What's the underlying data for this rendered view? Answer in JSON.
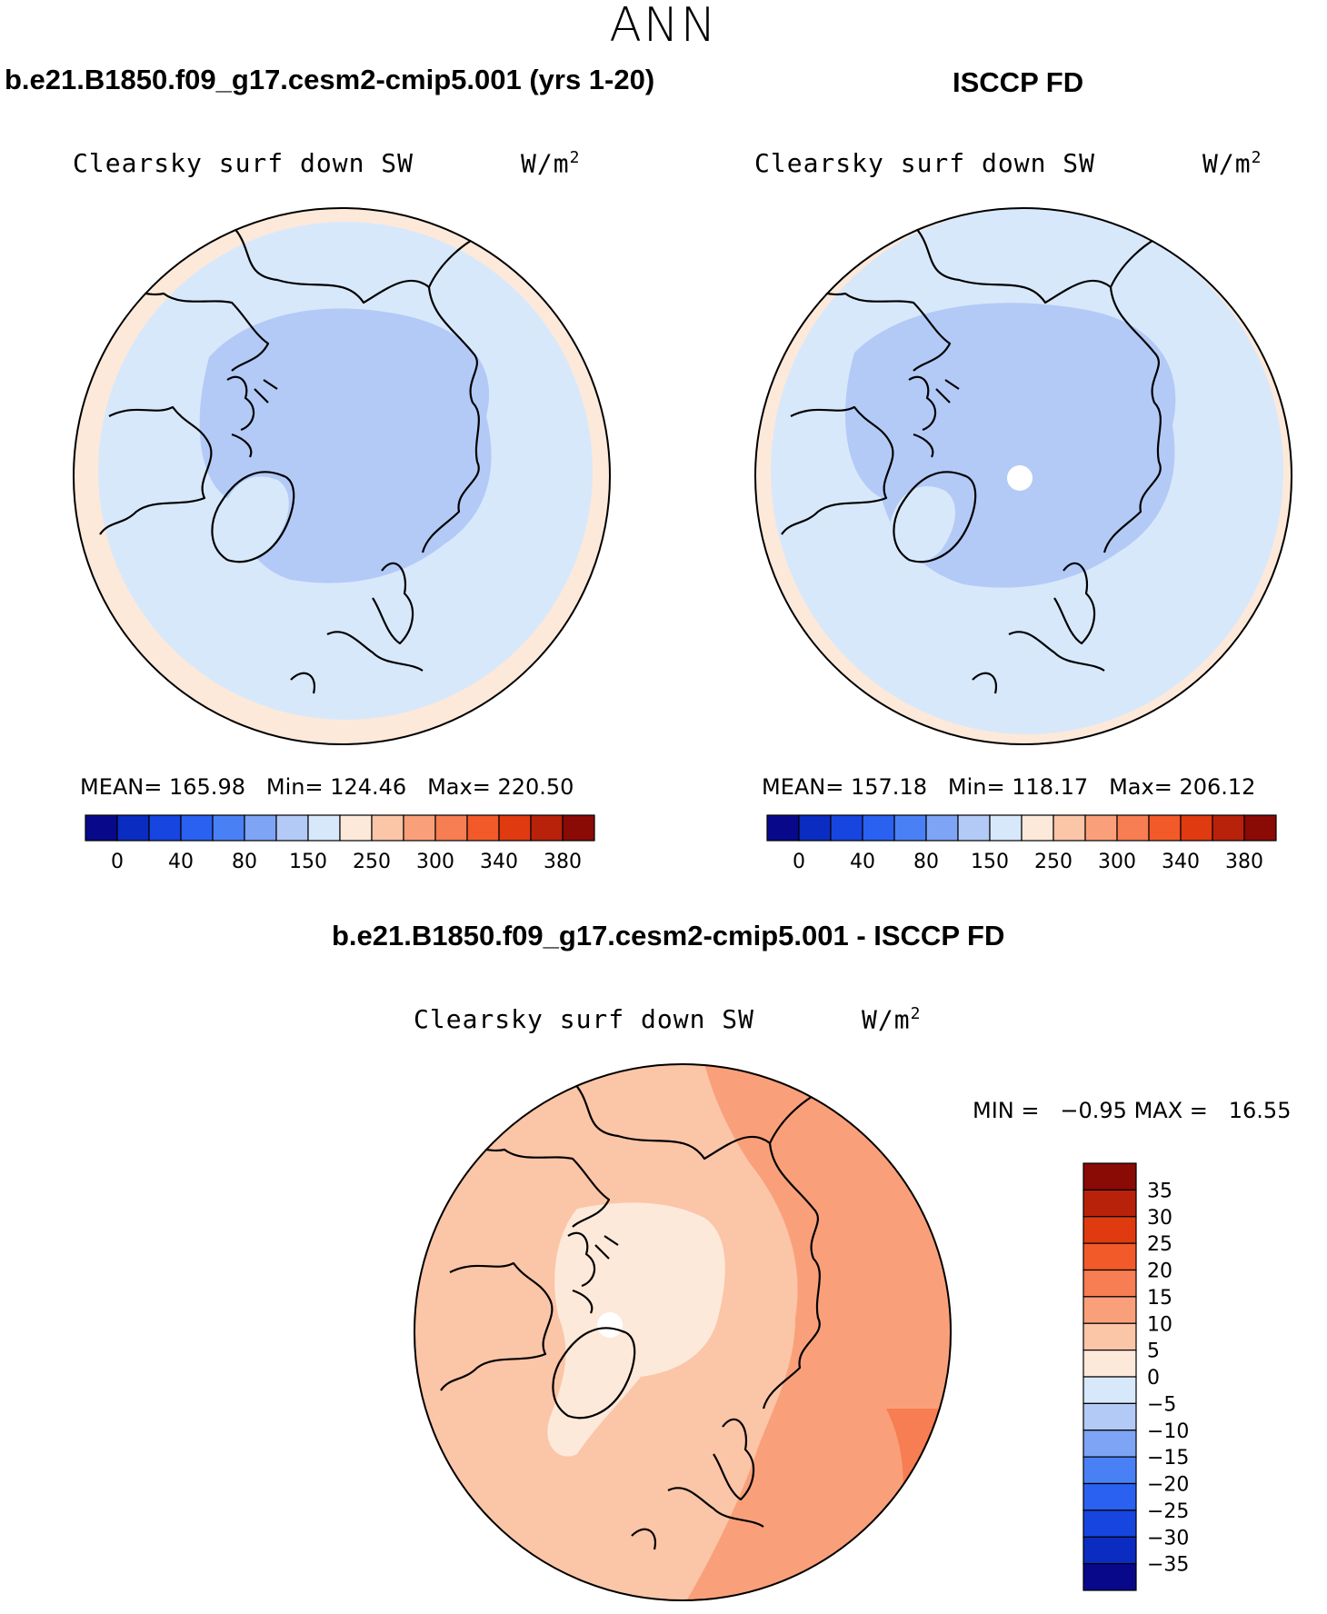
{
  "season": "ANN",
  "panels": {
    "model": {
      "title": "b.e21.B1850.f09_g17.cesm2-cmip5.001 (yrs 1-20)",
      "variable": "Clearsky surf down SW",
      "units": "W/m",
      "units_exp": "2",
      "mean_label": "MEAN=",
      "mean": "165.98",
      "min_label": "Min=",
      "min": "124.46",
      "max_label": "Max=",
      "max": "220.50"
    },
    "obs": {
      "title": "ISCCP FD",
      "variable": "Clearsky surf down SW",
      "units": "W/m",
      "units_exp": "2",
      "mean_label": "MEAN=",
      "mean": "157.18",
      "min_label": "Min=",
      "min": "118.17",
      "max_label": "Max=",
      "max": "206.12"
    },
    "diff": {
      "title": "b.e21.B1850.f09_g17.cesm2-cmip5.001 - ISCCP FD",
      "variable": "Clearsky surf down SW",
      "units": "W/m",
      "units_exp": "2",
      "min_label": "MIN =",
      "min": "−0.95",
      "max_label": "MAX =",
      "max": "16.55"
    }
  },
  "chart_data": [
    {
      "type": "heatmap",
      "projection": "north-polar-stereographic",
      "title": "b.e21.B1850.f09_g17.cesm2-cmip5.001 (yrs 1-20)",
      "variable": "Clearsky surf down SW",
      "units": "W/m2",
      "stats": {
        "mean": 165.98,
        "min": 124.46,
        "max": 220.5
      },
      "region_values": {
        "high_arctic_max_contour": 150,
        "mid_latitudes_contour": 150,
        "outer_rim_contour": 250
      },
      "colorbar": {
        "orientation": "horizontal",
        "tick_labels": [
          "0",
          "40",
          "80",
          "150",
          "250",
          "300",
          "340",
          "380"
        ],
        "colors": [
          "#08098a",
          "#0a2cc0",
          "#1645e0",
          "#2a61f0",
          "#4a80f5",
          "#7ea4f5",
          "#b3caf7",
          "#d8e8fb",
          "#fde9da",
          "#fbc5a8",
          "#f9a07a",
          "#f77d52",
          "#f25a2a",
          "#e03a10",
          "#b8220a",
          "#8a0a05"
        ]
      }
    },
    {
      "type": "heatmap",
      "projection": "north-polar-stereographic",
      "title": "ISCCP FD",
      "variable": "Clearsky surf down SW",
      "units": "W/m2",
      "stats": {
        "mean": 157.18,
        "min": 118.17,
        "max": 206.12
      },
      "colorbar": {
        "orientation": "horizontal",
        "tick_labels": [
          "0",
          "40",
          "80",
          "150",
          "250",
          "300",
          "340",
          "380"
        ],
        "colors": [
          "#08098a",
          "#0a2cc0",
          "#1645e0",
          "#2a61f0",
          "#4a80f5",
          "#7ea4f5",
          "#b3caf7",
          "#d8e8fb",
          "#fde9da",
          "#fbc5a8",
          "#f9a07a",
          "#f77d52",
          "#f25a2a",
          "#e03a10",
          "#b8220a",
          "#8a0a05"
        ]
      }
    },
    {
      "type": "heatmap",
      "projection": "north-polar-stereographic",
      "title": "b.e21.B1850.f09_g17.cesm2-cmip5.001 - ISCCP FD",
      "variable": "Clearsky surf down SW",
      "units": "W/m2",
      "stats": {
        "min": -0.95,
        "max": 16.55
      },
      "colorbar": {
        "orientation": "vertical",
        "tick_labels": [
          "35",
          "30",
          "25",
          "20",
          "15",
          "10",
          "5",
          "0",
          "−5",
          "−10",
          "−15",
          "−20",
          "−25",
          "−30",
          "−35"
        ],
        "colors": [
          "#8a0a05",
          "#b8220a",
          "#e03a10",
          "#f25a2a",
          "#f77d52",
          "#f9a07a",
          "#fbc5a8",
          "#fde9da",
          "#d8e8fb",
          "#b3caf7",
          "#7ea4f5",
          "#4a80f5",
          "#2a61f0",
          "#1645e0",
          "#0a2cc0",
          "#08098a"
        ]
      }
    }
  ]
}
